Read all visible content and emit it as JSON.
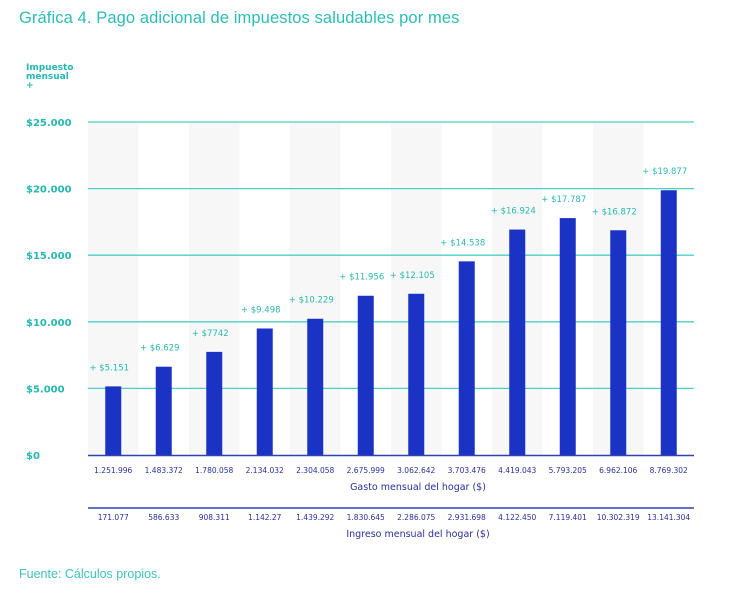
{
  "title": "Gráfica 4. Pago adicional de impuestos saludables por mes",
  "source": "Fuente: Cálculos propios.",
  "colors": {
    "bar": "#1a33c4",
    "grid": "#4ccfc6",
    "axis": "#3340b0",
    "stripe": "#f7f7f8",
    "accent": "#2bbdb5"
  },
  "chart_data": {
    "type": "bar",
    "title": "Gráfica 4. Pago adicional de impuestos saludables por mes",
    "ylabel_lines": [
      "Impuesto",
      "mensual",
      "+"
    ],
    "ylabel": "Impuesto mensual +",
    "xlabel": "Gasto mensual del hogar ($)",
    "xlabel_secondary": "Ingreso mensual del hogar ($)",
    "ylim": [
      0,
      25000
    ],
    "yticks": [
      0,
      5000,
      10000,
      15000,
      20000,
      25000
    ],
    "ytick_labels": [
      "$0",
      "$5.000",
      "$10.000",
      "$15.000",
      "$20.000",
      "$25.000"
    ],
    "grid": true,
    "categories": [
      "1.251.996",
      "1.483.372",
      "1.780.058",
      "2.134.032",
      "2.304.058",
      "2.675.999",
      "3.062.642",
      "3.703.476",
      "4.419.043",
      "5.793.205",
      "6.962.106",
      "8.769.302"
    ],
    "secondary_categories": [
      "171.077",
      "586.633",
      "908.311",
      "1.142.27",
      "1.439.292",
      "1.830.645",
      "2.286.075",
      "2.931.698",
      "4.122.450",
      "7.119.401",
      "10.302.319",
      "13.141.304"
    ],
    "values": [
      5151,
      6629,
      7742,
      9498,
      10229,
      11956,
      12105,
      14538,
      16924,
      17787,
      16872,
      19877
    ],
    "data_labels": [
      "+ $5.151",
      "+ $6.629",
      "+ $7742",
      "+ $9.498",
      "+ $10.229",
      "+ $11.956",
      "+ $12.105",
      "+ $14.538",
      "+ $16.924",
      "+ $17.787",
      "+ $16.872",
      "+ $19.877"
    ]
  }
}
